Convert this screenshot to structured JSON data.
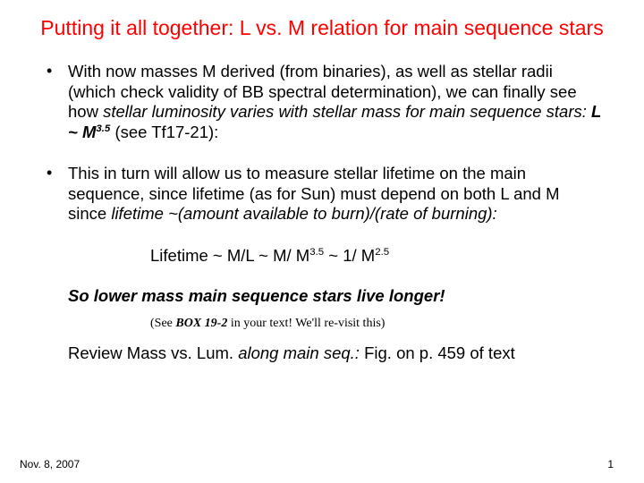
{
  "title": "Putting it all together: L vs. M relation for main sequence stars",
  "bullet1_a": "With now masses M derived (from binaries), as well as stellar radii (which check validity of BB spectral determination), we can finally see how ",
  "bullet1_b": "stellar luminosity varies with stellar mass for main sequence stars: ",
  "bullet1_c": "L ~ M",
  "bullet1_exp": "3.5",
  "bullet1_d": "(see Tf17-21):",
  "bullet2_a": "This in turn will allow us to measure stellar lifetime on the main sequence, since lifetime (as for Sun) must depend on both L and M since ",
  "bullet2_b": "lifetime ~(amount available to burn)/(rate of burning):",
  "formula_a": "Lifetime ~ M/L ~ M/ M",
  "formula_exp1": "3.5",
  "formula_b": " ~ 1/ M",
  "formula_exp2": "2.5",
  "conclusion": "So lower mass main sequence stars live longer!",
  "seebox_a": "(See ",
  "seebox_b": "BOX 19-2",
  "seebox_c": " in your text! We'll re-visit this)",
  "review_a": "Review Mass vs. Lum. ",
  "review_b": "along main seq.: ",
  "review_c": "Fig. on p. 459 of text",
  "footer_date": "Nov. 8, 2007",
  "footer_page": "1"
}
